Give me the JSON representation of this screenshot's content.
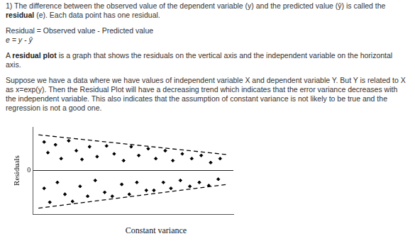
{
  "document": {
    "paragraphs": [
      [
        {
          "text": "1) The difference between the observed value of the dependent variable (y) and the predicted value (ŷ) is called the ",
          "bold": false
        },
        {
          "text": "residual",
          "bold": true
        },
        {
          "text": " (e). Each data point has one residual.",
          "bold": false
        }
      ],
      [
        {
          "text": "Residual = Observed value - Predicted value",
          "bold": false
        }
      ],
      [
        {
          "text": "e = y - ŷ",
          "bold": false
        }
      ],
      [
        {
          "text": "A ",
          "bold": false
        },
        {
          "text": "residual plot",
          "bold": true
        },
        {
          "text": " is a graph that shows the residuals on the vertical axis and the independent variable on the horizontal axis.",
          "bold": false
        }
      ],
      [
        {
          "text": "Suppose we have a data where we have values of independent variable X and dependent variable Y. But Y is related to X as x=exp(y). Then the Residual Plot will have a decreasing trend which indicates that the error variance decreases with the independent variable. This also indicates that the assumption of constant variance is not likely to be true and the regression is not a good one.",
          "bold": false
        }
      ]
    ],
    "caption": "Constant variance"
  },
  "chart_data": {
    "type": "scatter",
    "y_label": "Residuals",
    "xlim": [
      -0.3,
      10.3
    ],
    "xticks": [],
    "ylim": [
      -1.1,
      1.1
    ],
    "yticks": [
      0
    ],
    "tick_labels": "y",
    "grid": true,
    "series": [
      {
        "type": "scatter",
        "color": "#000000",
        "marker": "diamond",
        "x": [
          0.3,
          0.5,
          0.9,
          1.2,
          1.6,
          2.0,
          2.3,
          2.7,
          3.1,
          3.6,
          4.0,
          4.5,
          4.9,
          5.3,
          5.8,
          6.2,
          6.7,
          7.1,
          7.6,
          8.1,
          8.6,
          9.1,
          9.6,
          0.3,
          0.6,
          1.0,
          1.4,
          1.8,
          2.2,
          2.6,
          3.0,
          3.5,
          3.9,
          4.4,
          4.8,
          5.2,
          5.7,
          6.1,
          6.6,
          7.0,
          7.5,
          8.0,
          8.5,
          9.0,
          9.5
        ],
        "values": [
          0.72,
          0.45,
          0.65,
          0.3,
          0.75,
          0.5,
          0.28,
          0.6,
          0.35,
          0.62,
          0.42,
          0.25,
          0.6,
          0.38,
          0.55,
          0.3,
          0.5,
          0.25,
          0.42,
          0.3,
          0.38,
          0.2,
          0.3,
          -0.45,
          -0.8,
          -0.3,
          -0.6,
          -0.78,
          -0.4,
          -0.65,
          -0.25,
          -0.55,
          -0.65,
          -0.35,
          -0.6,
          -0.3,
          -0.5,
          -0.5,
          -0.3,
          -0.45,
          -0.25,
          -0.4,
          -0.3,
          -0.38,
          -0.22
        ]
      },
      {
        "type": "line",
        "color": "#000000",
        "line_style": "dashed",
        "x": [
          0,
          10
        ],
        "values": [
          0.9,
          0.4
        ]
      },
      {
        "type": "line",
        "color": "#000000",
        "line_style": "dashed",
        "x": [
          0,
          10
        ],
        "values": [
          -0.95,
          -0.35
        ]
      }
    ]
  }
}
